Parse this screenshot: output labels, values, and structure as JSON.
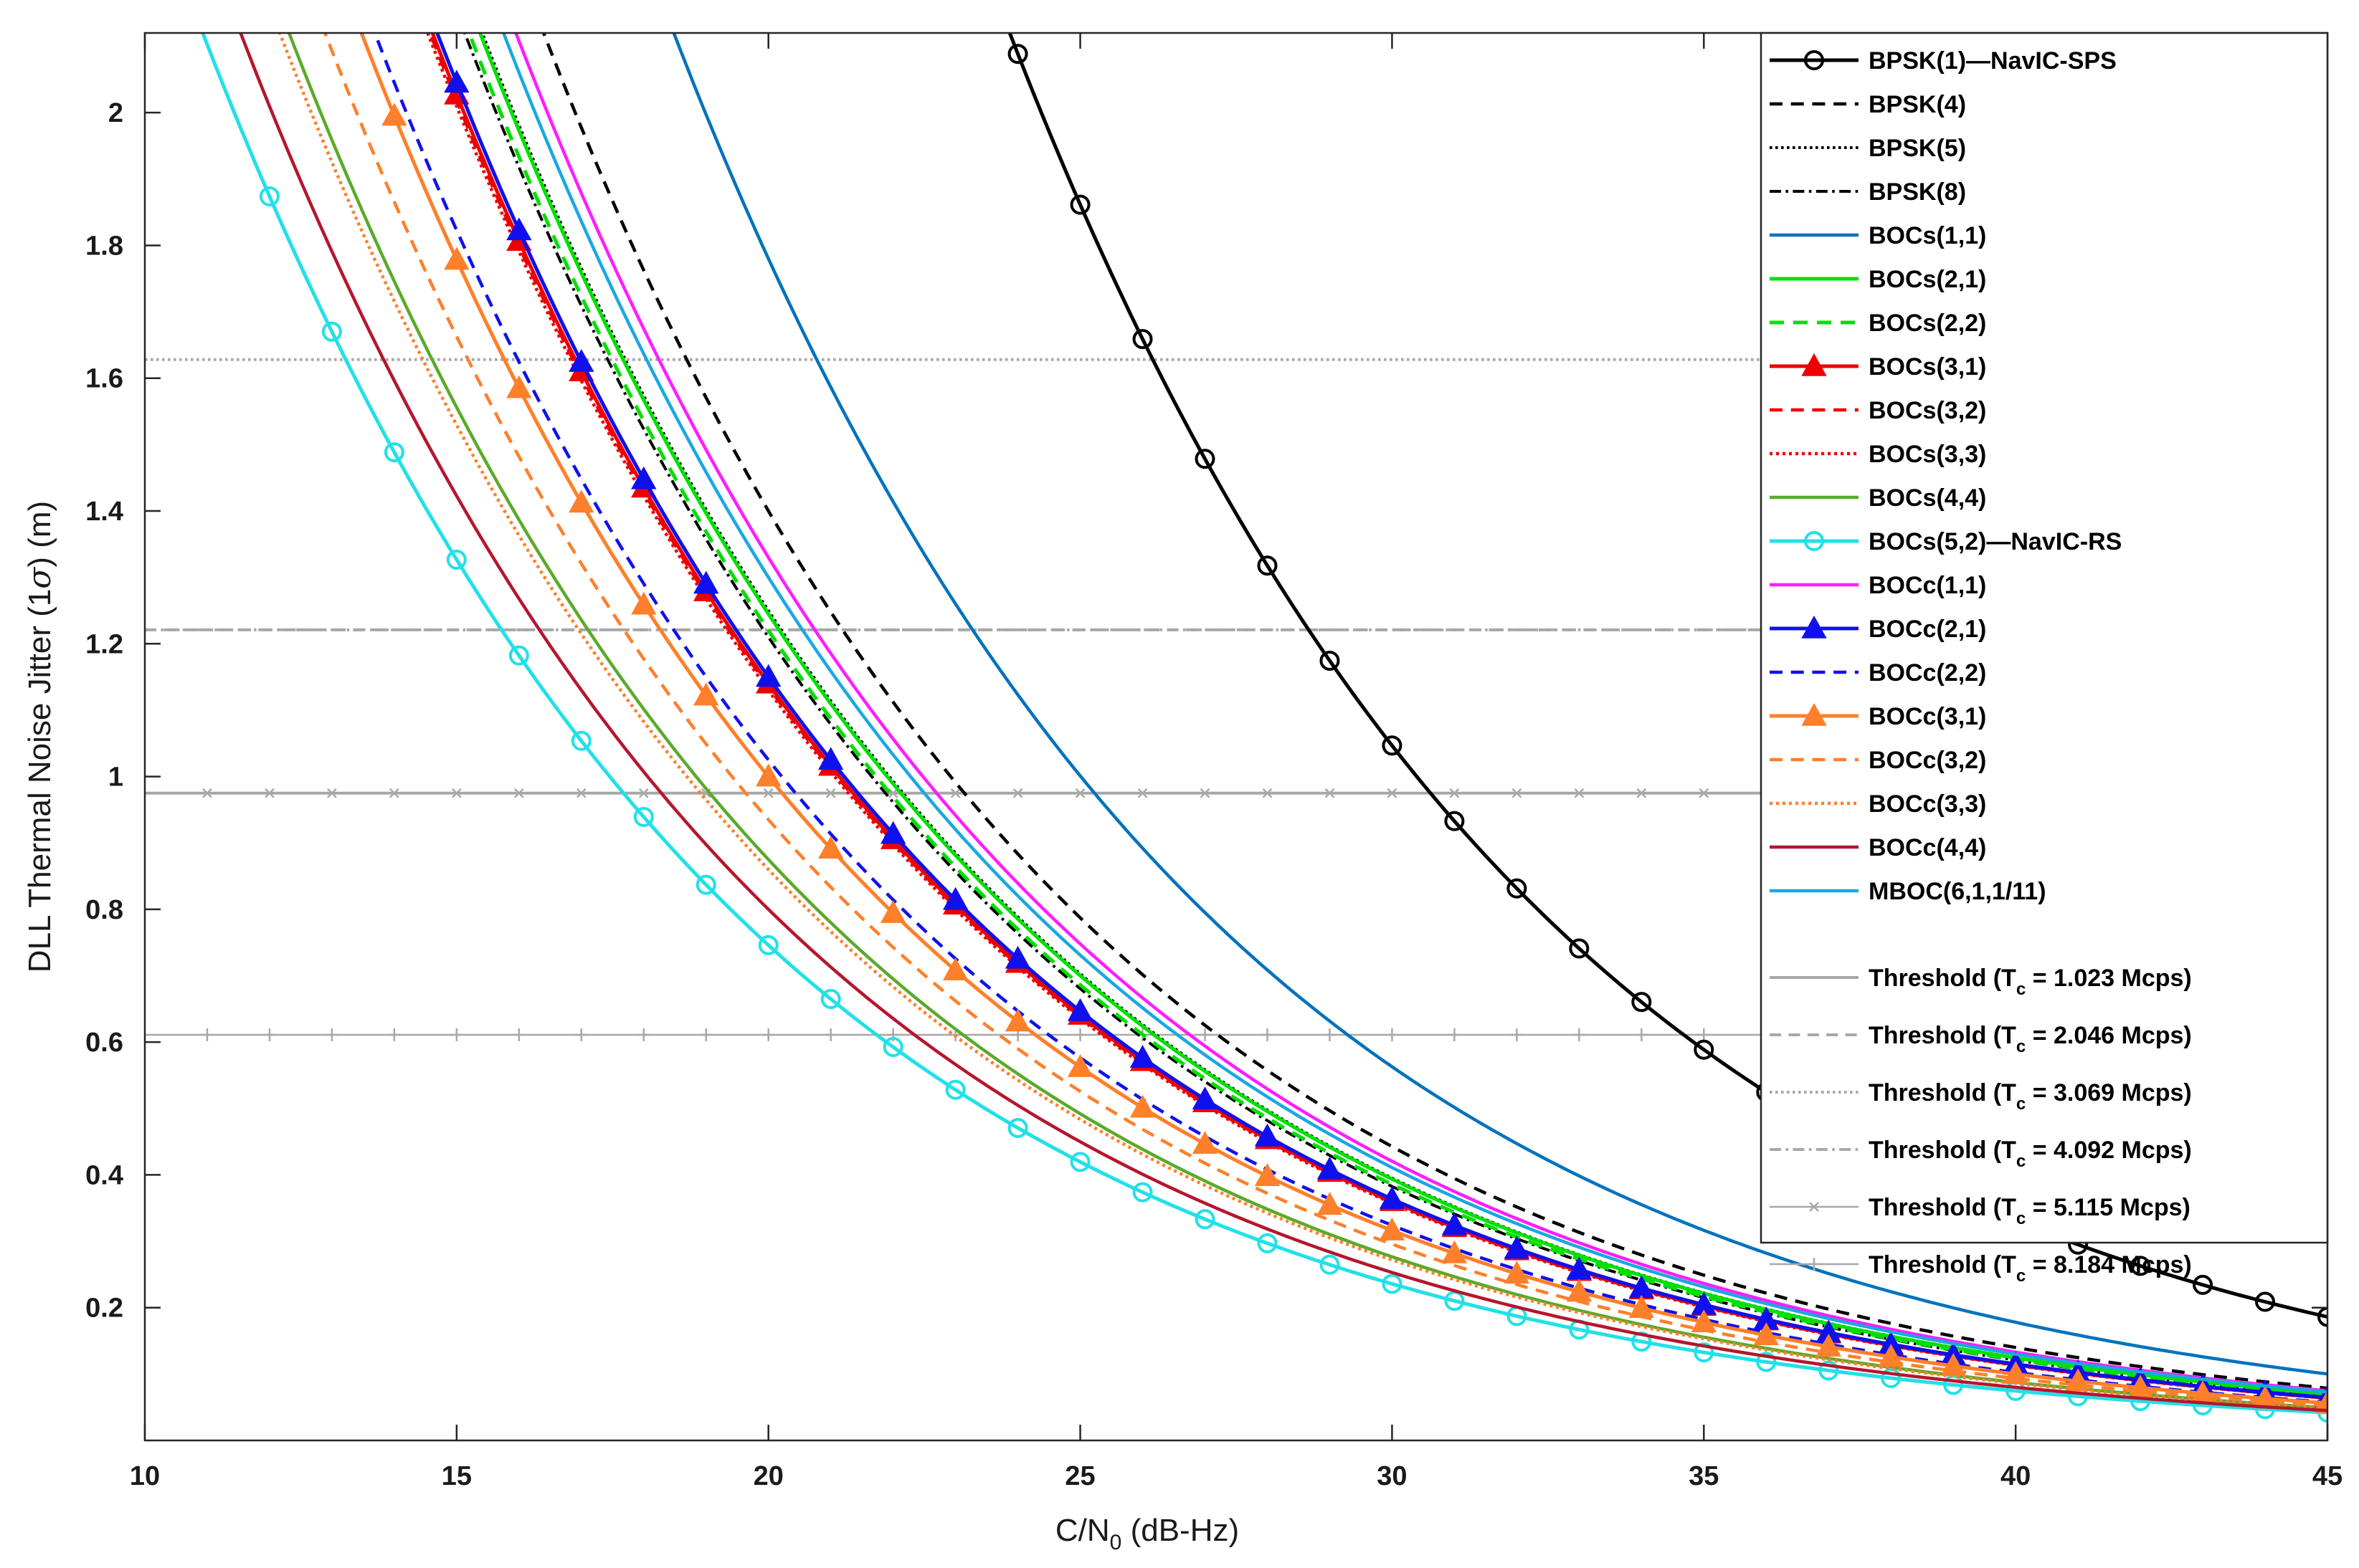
{
  "chart_data": {
    "type": "line",
    "xlabel_main": "C/N",
    "xlabel_sub": "0",
    "xlabel_rest": " (dB-Hz)",
    "ylabel_pre": "DLL Thermal Noise Jitter (1",
    "ylabel_sigma": "σ",
    "ylabel_post": ") (m)",
    "xlim": [
      10,
      45
    ],
    "ylim": [
      0,
      2.12
    ],
    "x_ticks": [
      10,
      15,
      20,
      25,
      30,
      35,
      40,
      45
    ],
    "y_ticks": [
      0.2,
      0.4,
      0.6,
      0.8,
      1,
      1.2,
      1.4,
      1.6,
      1.8,
      2
    ],
    "x_tick_labels": [
      "10",
      "15",
      "20",
      "25",
      "30",
      "35",
      "40",
      "45"
    ],
    "y_tick_labels": [
      "0.2",
      "0.4",
      "0.6",
      "0.8",
      "1",
      "1.2",
      "1.4",
      "1.6",
      "1.8",
      "2"
    ],
    "x_start": 10,
    "x_end": 45,
    "legend_position": "top-right",
    "series": [
      {
        "name": "BPSK(1)—NavIC-SPS",
        "label": "BPSK(1)—NavIC-SPS",
        "k": 3.31,
        "color": "#000000",
        "dash": "solid",
        "width": 5,
        "marker": "circle",
        "marker_start": 12
      },
      {
        "name": "BPSK(4)",
        "label": "BPSK(4)",
        "k": 1.4,
        "color": "#000000",
        "dash": "dash",
        "width": 4.5,
        "marker": "none",
        "marker_start": 0
      },
      {
        "name": "BPSK(5)",
        "label": "BPSK(5)",
        "k": 1.25,
        "color": "#000000",
        "dash": "dot",
        "width": 4,
        "marker": "none",
        "marker_start": 0
      },
      {
        "name": "BPSK(8)",
        "label": "BPSK(8)",
        "k": 1.21,
        "color": "#000000",
        "dash": "dashdot",
        "width": 4,
        "marker": "none",
        "marker_start": 0
      },
      {
        "name": "BOCs(1,1)",
        "label": "BOCs(1,1)",
        "k": 1.78,
        "color": "#0072BD",
        "dash": "solid",
        "width": 4.5,
        "marker": "none",
        "marker_start": 0
      },
      {
        "name": "BOCs(2,1)",
        "label": "BOCs(2,1)",
        "k": 1.245,
        "color": "#00E000",
        "dash": "solid",
        "width": 5,
        "marker": "none",
        "marker_start": 0
      },
      {
        "name": "BOCs(2,2)",
        "label": "BOCs(2,2)",
        "k": 1.22,
        "color": "#00E000",
        "dash": "dash",
        "width": 5,
        "marker": "none",
        "marker_start": 0
      },
      {
        "name": "BOCs(3,1)",
        "label": "BOCs(3,1)",
        "k": 1.14,
        "color": "#EE0000",
        "dash": "solid",
        "width": 5,
        "marker": "triangle",
        "marker_start": 14
      },
      {
        "name": "BOCs(3,2)",
        "label": "BOCs(3,2)",
        "k": 1.135,
        "color": "#EE0000",
        "dash": "dash",
        "width": 4.5,
        "marker": "none",
        "marker_start": 0
      },
      {
        "name": "BOCs(3,3)",
        "label": "BOCs(3,3)",
        "k": 1.13,
        "color": "#EE0000",
        "dash": "dot",
        "width": 4.5,
        "marker": "none",
        "marker_start": 0
      },
      {
        "name": "BOCs(4,4)",
        "label": "BOCs(4,4)",
        "k": 0.875,
        "color": "#5BAA2A",
        "dash": "solid",
        "width": 4.5,
        "marker": "none",
        "marker_start": 0
      },
      {
        "name": "BOCs(5,2)—NavIC-RS",
        "label": "BOCs(5,2)—NavIC-RS",
        "k": 0.746,
        "color": "#22E0E8",
        "dash": "solid",
        "width": 5,
        "marker": "circle",
        "marker_start": 12
      },
      {
        "name": "BOCc(1,1)",
        "label": "BOCc(1,1)",
        "k": 1.33,
        "color": "#FF1CFF",
        "dash": "solid",
        "width": 4.5,
        "marker": "none",
        "marker_start": 0
      },
      {
        "name": "BOCc(2,1)",
        "label": "BOCc(2,1)",
        "k": 1.15,
        "color": "#1010EE",
        "dash": "solid",
        "width": 5,
        "marker": "triangle",
        "marker_start": 15
      },
      {
        "name": "BOCc(2,2)",
        "label": "BOCc(2,2)",
        "k": 1.025,
        "color": "#1010EE",
        "dash": "dash",
        "width": 4.5,
        "marker": "none",
        "marker_start": 0
      },
      {
        "name": "BOCc(3,1)",
        "label": "BOCc(3,1)",
        "k": 1.0,
        "color": "#FF7F2A",
        "dash": "solid",
        "width": 5,
        "marker": "triangle",
        "marker_start": 14
      },
      {
        "name": "BOCc(3,2)",
        "label": "BOCc(3,2)",
        "k": 0.935,
        "color": "#FF7F2A",
        "dash": "dash",
        "width": 4.5,
        "marker": "none",
        "marker_start": 0
      },
      {
        "name": "BOCc(3,3)",
        "label": "BOCc(3,3)",
        "k": 0.86,
        "color": "#FF7F2A",
        "dash": "dot",
        "width": 4.5,
        "marker": "none",
        "marker_start": 0
      },
      {
        "name": "BOCc(4,4)",
        "label": "BOCc(4,4)",
        "k": 0.8,
        "color": "#B5162E",
        "dash": "solid",
        "width": 4.5,
        "marker": "none",
        "marker_start": 0
      },
      {
        "name": "MBOC(6,1,1/11)",
        "label": "MBOC(6,1,1/11)",
        "k": 1.3,
        "color": "#1AA8E0",
        "dash": "solid",
        "width": 4.5,
        "marker": "none",
        "marker_start": 0
      }
    ],
    "thresholds": [
      {
        "name": "Threshold (Tc = 1.023 Mcps)",
        "label_pre": "Threshold (T",
        "label_sub": "c",
        "label_post": " = 1.023 Mcps)",
        "y": 0.975,
        "color": "#A8A8A8",
        "dash": "solid",
        "width": 4,
        "marker": "none"
      },
      {
        "name": "Threshold (Tc = 2.046 Mcps)",
        "label_pre": "Threshold (T",
        "label_sub": "c",
        "label_post": " = 2.046 Mcps)",
        "y": 1.221,
        "color": "#A8A8A8",
        "dash": "dash",
        "width": 4,
        "marker": "none"
      },
      {
        "name": "Threshold (Tc = 3.069 Mcps)",
        "label_pre": "Threshold (T",
        "label_sub": "c",
        "label_post": " = 3.069 Mcps)",
        "y": 1.628,
        "color": "#A8A8A8",
        "dash": "dot",
        "width": 4,
        "marker": "none"
      },
      {
        "name": "Threshold (Tc = 4.092 Mcps)",
        "label_pre": "Threshold (T",
        "label_sub": "c",
        "label_post": " = 4.092 Mcps)",
        "y": 1.221,
        "color": "#A8A8A8",
        "dash": "dashdot",
        "width": 4,
        "marker": "none"
      },
      {
        "name": "Threshold (Tc = 5.115 Mcps)",
        "label_pre": "Threshold (T",
        "label_sub": "c",
        "label_post": " = 5.115 Mcps)",
        "y": 0.975,
        "color": "#A8A8A8",
        "dash": "solid",
        "width": 2.5,
        "marker": "x"
      },
      {
        "name": "Threshold (Tc = 8.184 Mcps)",
        "label_pre": "Threshold (T",
        "label_sub": "c",
        "label_post": " = 8.184 Mcps)",
        "y": 0.611,
        "color": "#A8A8A8",
        "dash": "solid",
        "width": 2.5,
        "marker": "plus"
      }
    ]
  }
}
